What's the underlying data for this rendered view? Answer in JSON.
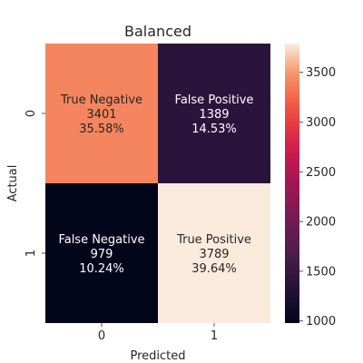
{
  "chart_data": {
    "type": "heatmap",
    "title": "Balanced",
    "xlabel": "Predicted",
    "ylabel": "Actual",
    "x_categories": [
      "0",
      "1"
    ],
    "y_categories": [
      "0",
      "1"
    ],
    "cells": [
      [
        {
          "label": "True Negative",
          "count": "3401",
          "percent": "35.58%",
          "value": 3401
        },
        {
          "label": "False Positive",
          "count": "1389",
          "percent": "14.53%",
          "value": 1389
        }
      ],
      [
        {
          "label": "False Negative",
          "count": "979",
          "percent": "10.24%",
          "value": 979
        },
        {
          "label": "True Positive",
          "count": "3789",
          "percent": "39.64%",
          "value": 3789
        }
      ]
    ],
    "colorbar": {
      "min": 979,
      "max": 3789,
      "ticks": [
        "1000",
        "1500",
        "2000",
        "2500",
        "3000",
        "3500"
      ],
      "tick_values": [
        1000,
        1500,
        2000,
        2500,
        3000,
        3500
      ],
      "colormap": "rocket"
    }
  }
}
